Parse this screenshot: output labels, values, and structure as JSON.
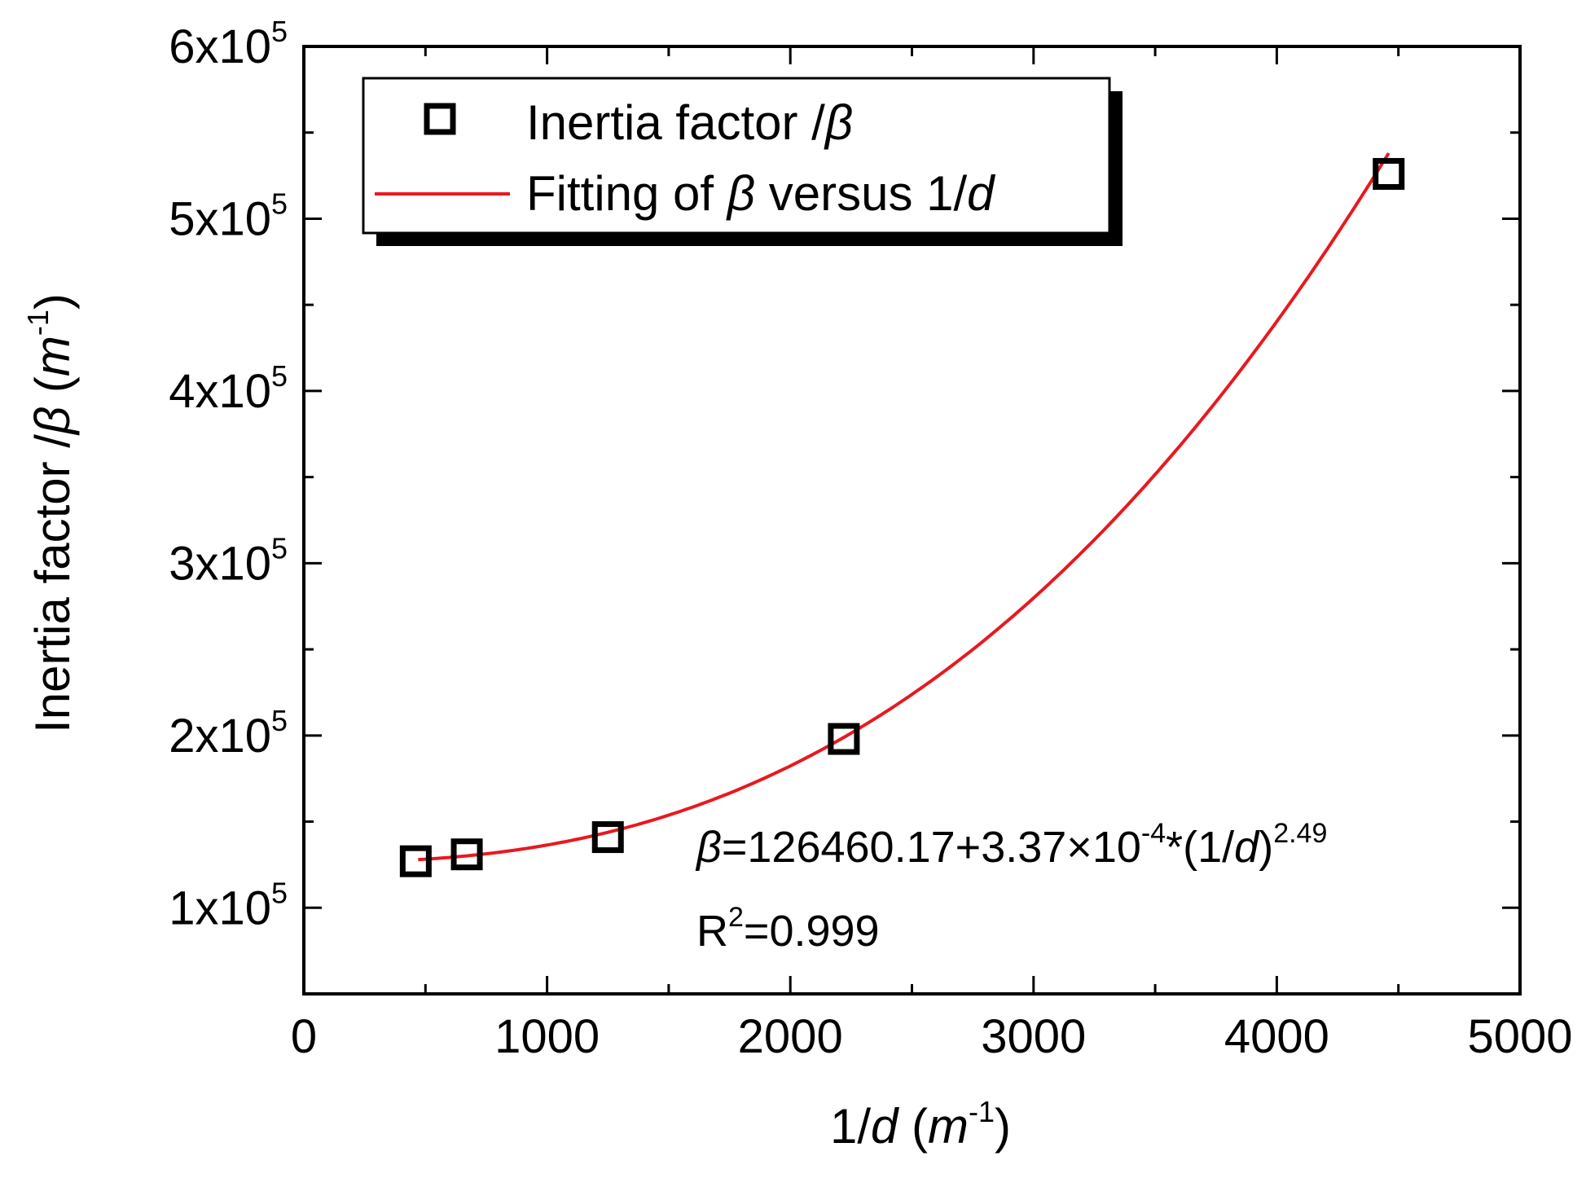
{
  "chart_data": {
    "type": "scatter",
    "xlabel": {
      "prefix": "1/",
      "var": "d",
      "open": " (",
      "unit": "m",
      "exp": "-1",
      "close": ")"
    },
    "ylabel": {
      "prefix": "Inertia factor /",
      "var": "β",
      "open": " (",
      "unit": "m",
      "exp": "-1",
      "close": ")"
    },
    "xlim": [
      0,
      5000
    ],
    "ylim": [
      50000,
      600000
    ],
    "x_ticks": [
      {
        "value": 0,
        "label": "0"
      },
      {
        "value": 1000,
        "label": "1000"
      },
      {
        "value": 2000,
        "label": "2000"
      },
      {
        "value": 3000,
        "label": "3000"
      },
      {
        "value": 4000,
        "label": "4000"
      },
      {
        "value": 5000,
        "label": "5000"
      }
    ],
    "y_ticks": [
      {
        "value": 100000,
        "mant": "1x10",
        "exp": "5"
      },
      {
        "value": 200000,
        "mant": "2x10",
        "exp": "5"
      },
      {
        "value": 300000,
        "mant": "3x10",
        "exp": "5"
      },
      {
        "value": 400000,
        "mant": "4x10",
        "exp": "5"
      },
      {
        "value": 500000,
        "mant": "5x10",
        "exp": "5"
      },
      {
        "value": 600000,
        "mant": "6x10",
        "exp": "5"
      }
    ],
    "x_minor_step": 500,
    "y_minor_step": 50000,
    "series": [
      {
        "name": "Inertia factor /β",
        "kind": "scatter",
        "marker": "open-square",
        "color": "#000000",
        "points": [
          {
            "x": 460,
            "y": 127000
          },
          {
            "x": 670,
            "y": 131000
          },
          {
            "x": 1250,
            "y": 141000
          },
          {
            "x": 2220,
            "y": 198000
          },
          {
            "x": 4460,
            "y": 526000
          }
        ]
      },
      {
        "name": "Fitting of β versus 1/d",
        "kind": "fit-line",
        "color": "#e8191f",
        "x_range": [
          470,
          4460
        ],
        "model": {
          "a": 126460.17,
          "b": 0.000337,
          "c": 2.49
        }
      }
    ],
    "legend": {
      "placement": "top-left",
      "entries": [
        {
          "prefix": "Inertia factor /",
          "var": "β",
          "suffix": ""
        },
        {
          "prefix": "Fitting of ",
          "var": "β",
          "suffix": " versus 1/",
          "var2": "d"
        }
      ]
    },
    "annotation": {
      "eq_var": "β",
      "eq_body": "=126460.17+3.37×10",
      "eq_exp": "-4",
      "eq_mid": "*(1/",
      "eq_var2": "d",
      "eq_close": ")",
      "eq_pow": "2.49",
      "r2_label": "R",
      "r2_exp": "2",
      "r2_value": "=0.999"
    }
  }
}
